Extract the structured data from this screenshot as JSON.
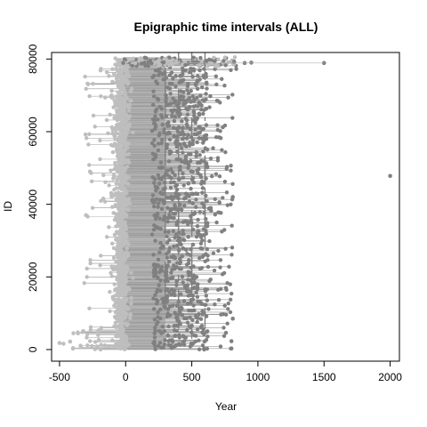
{
  "chart_data": {
    "type": "scatter",
    "title": "Epigraphic time intervals (ALL)",
    "xlabel": "Year",
    "ylabel": "ID",
    "xlim": [
      -560,
      2070
    ],
    "ylim": [
      -3200,
      81800
    ],
    "x_ticks": [
      -500,
      0,
      500,
      1000,
      1500,
      2000
    ],
    "y_ticks": [
      0,
      20000,
      40000,
      60000,
      80000
    ],
    "grid": false,
    "legend": "none",
    "series_colors": {
      "start": "#bebebe",
      "end": "#808080",
      "interval": "#b3b3b3",
      "interval_late": "#999999"
    },
    "dense_band": {
      "x": [
        -20,
        300
      ],
      "y": [
        0,
        80500
      ]
    },
    "outliers": [
      {
        "x": 1500,
        "y": 78900
      },
      {
        "x": 2000,
        "y": 47800
      },
      {
        "x": 900,
        "y": 78900
      },
      {
        "x": 950,
        "y": 79000
      },
      {
        "x": -500,
        "y": 1800
      },
      {
        "x": -470,
        "y": 1600
      },
      {
        "x": -420,
        "y": 2200
      },
      {
        "x": -300,
        "y": 37000
      },
      {
        "x": -270,
        "y": 49000
      },
      {
        "x": 810,
        "y": 42000
      },
      {
        "x": 810,
        "y": 8500
      },
      {
        "x": 800,
        "y": 2300
      },
      {
        "x": 800,
        "y": 300
      },
      {
        "x": 820,
        "y": 79200
      }
    ]
  }
}
